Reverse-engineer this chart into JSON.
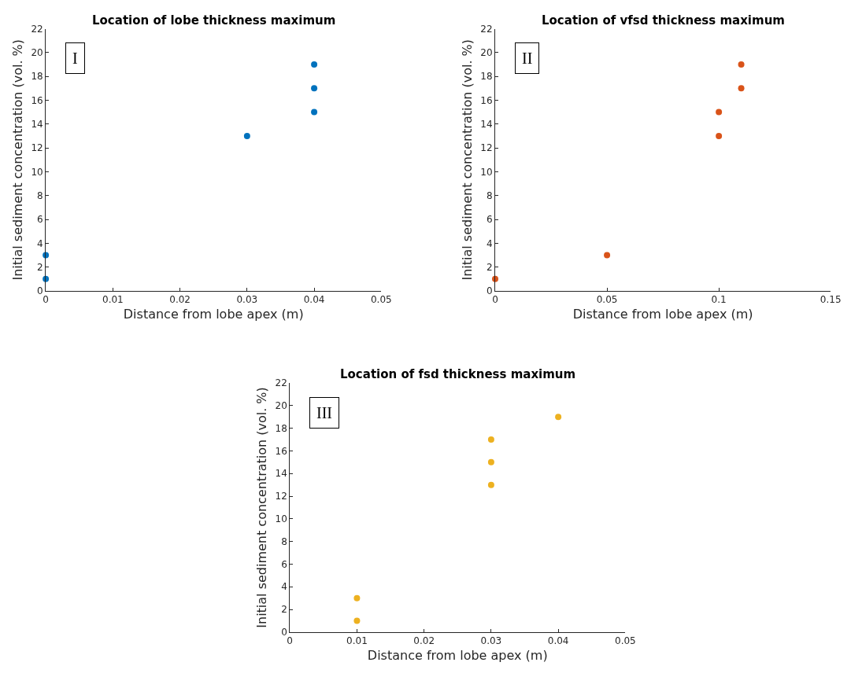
{
  "chart_data": [
    {
      "type": "scatter",
      "title": "Location of lobe thickness maximum",
      "xlabel": "Distance from lobe apex (m)",
      "ylabel": "Initial sediment concentration (vol. %)",
      "annotations": [
        "I"
      ],
      "marker": "circle",
      "x": [
        0,
        0,
        0.03,
        0.04,
        0.04,
        0.04
      ],
      "series": [
        {
          "color": "#0072bd",
          "values": [
            1,
            3,
            13,
            15,
            17,
            19
          ]
        }
      ],
      "xlim": [
        0,
        0.05
      ],
      "xticks": [
        0,
        0.01,
        0.02,
        0.03,
        0.04,
        0.05
      ],
      "ylim": [
        0,
        22
      ],
      "yticks": [
        0,
        2,
        4,
        6,
        8,
        10,
        12,
        14,
        16,
        18,
        20,
        22
      ]
    },
    {
      "type": "scatter",
      "title": "Location of vfsd thickness maximum",
      "xlabel": "Distance from lobe apex (m)",
      "ylabel": "Initial sediment concentration (vol. %)",
      "annotations": [
        "II"
      ],
      "marker": "circle",
      "x": [
        0,
        0.05,
        0.1,
        0.1,
        0.11,
        0.11
      ],
      "series": [
        {
          "color": "#d95319",
          "values": [
            1,
            3,
            13,
            15,
            17,
            19
          ]
        }
      ],
      "xlim": [
        0,
        0.15
      ],
      "xticks": [
        0,
        0.05,
        0.1,
        0.15
      ],
      "ylim": [
        0,
        22
      ],
      "yticks": [
        0,
        2,
        4,
        6,
        8,
        10,
        12,
        14,
        16,
        18,
        20,
        22
      ]
    },
    {
      "type": "scatter",
      "title": "Location of fsd thickness maximum",
      "xlabel": "Distance from lobe apex (m)",
      "ylabel": "Initial sediment concentration (vol. %)",
      "annotations": [
        "III"
      ],
      "marker": "circle",
      "x": [
        0.01,
        0.01,
        0.03,
        0.03,
        0.03,
        0.04
      ],
      "series": [
        {
          "color": "#edb120",
          "values": [
            1,
            3,
            13,
            15,
            17,
            19
          ]
        }
      ],
      "xlim": [
        0,
        0.05
      ],
      "xticks": [
        0,
        0.01,
        0.02,
        0.03,
        0.04,
        0.05
      ],
      "ylim": [
        0,
        22
      ],
      "yticks": [
        0,
        2,
        4,
        6,
        8,
        10,
        12,
        14,
        16,
        18,
        20,
        22
      ]
    }
  ]
}
